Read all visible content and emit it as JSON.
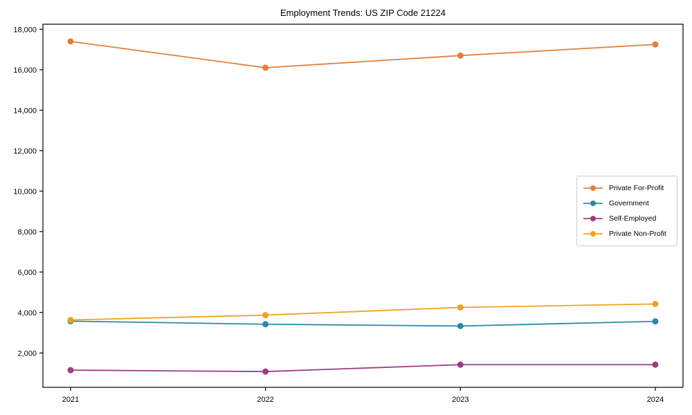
{
  "title": "Employment Trends: US ZIP Code 21224",
  "chart_data": {
    "type": "line",
    "title": "Employment Trends: US ZIP Code 21224",
    "xlabel": "",
    "ylabel": "",
    "x": [
      2021,
      2022,
      2023,
      2024
    ],
    "x_tick_labels": [
      "2021",
      "2022",
      "2023",
      "2024"
    ],
    "series": [
      {
        "name": "Private For-Profit",
        "color": "#E0803C",
        "values": [
          17400,
          16100,
          16700,
          17250
        ]
      },
      {
        "name": "Government",
        "color": "#2F87A6",
        "values": [
          3570,
          3420,
          3330,
          3560
        ]
      },
      {
        "name": "Self-Employed",
        "color": "#9C3D86",
        "values": [
          1150,
          1080,
          1420,
          1420
        ]
      },
      {
        "name": "Private Non-Profit",
        "color": "#EFA221",
        "values": [
          3630,
          3870,
          4250,
          4420
        ]
      }
    ],
    "yticks": [
      2000,
      4000,
      6000,
      8000,
      10000,
      12000,
      14000,
      16000,
      18000
    ],
    "ytick_labels": [
      "2,000",
      "4,000",
      "6,000",
      "8,000",
      "10,000",
      "12,000",
      "14,000",
      "16,000",
      "18,000"
    ],
    "ylim": [
      300,
      18250
    ],
    "grid": false,
    "legend_position": "center-right",
    "marker": "circle",
    "spine_color": "#000000",
    "tick_color": "#000000",
    "legend_border_color": "#cccccc"
  }
}
